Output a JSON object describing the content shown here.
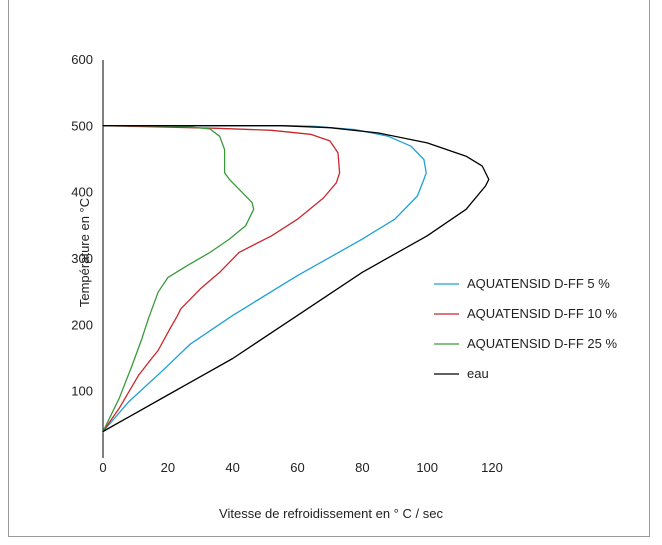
{
  "chart_data": {
    "type": "line",
    "title": "",
    "xlabel": "Vitesse de refroidissement en ° C / sec",
    "ylabel": "Température en  °C",
    "xlim": [
      0,
      120
    ],
    "ylim": [
      0,
      600
    ],
    "x_ticks": [
      0,
      20,
      40,
      60,
      80,
      100,
      120
    ],
    "y_ticks": [
      100,
      200,
      300,
      400,
      500,
      600
    ],
    "grid": false,
    "legend_position": "right",
    "series": [
      {
        "name": "AQUATENSID D-FF 5 %",
        "color": "#1ea1d6",
        "points": [
          [
            0,
            40
          ],
          [
            8,
            85
          ],
          [
            18,
            130
          ],
          [
            27,
            172
          ],
          [
            40,
            215
          ],
          [
            60,
            275
          ],
          [
            80,
            330
          ],
          [
            90,
            360
          ],
          [
            97,
            395
          ],
          [
            99,
            420
          ],
          [
            99.7,
            430
          ],
          [
            99,
            450
          ],
          [
            95,
            470
          ],
          [
            88,
            485
          ],
          [
            78,
            495
          ],
          [
            65,
            500
          ],
          [
            55,
            501
          ],
          [
            30,
            501
          ],
          [
            0,
            501
          ]
        ]
      },
      {
        "name": "AQUATENSID D-FF 10 %",
        "color": "#c8282d",
        "points": [
          [
            0,
            40
          ],
          [
            5,
            75
          ],
          [
            11,
            125
          ],
          [
            15,
            150
          ],
          [
            17,
            162
          ],
          [
            19,
            180
          ],
          [
            21,
            198
          ],
          [
            23,
            215
          ],
          [
            24,
            225
          ],
          [
            30,
            255
          ],
          [
            36,
            280
          ],
          [
            42,
            310
          ],
          [
            52,
            335
          ],
          [
            60,
            360
          ],
          [
            68,
            392
          ],
          [
            72,
            415
          ],
          [
            73,
            430
          ],
          [
            72.5,
            460
          ],
          [
            70,
            478
          ],
          [
            64,
            488
          ],
          [
            52,
            494
          ],
          [
            35,
            497
          ],
          [
            18,
            499
          ],
          [
            0,
            501
          ]
        ]
      },
      {
        "name": "AQUATENSID D-FF 25 %",
        "color": "#3a9a3a",
        "points": [
          [
            0,
            40
          ],
          [
            5,
            90
          ],
          [
            9,
            140
          ],
          [
            12,
            180
          ],
          [
            14,
            210
          ],
          [
            17,
            250
          ],
          [
            20,
            272
          ],
          [
            26,
            290
          ],
          [
            33,
            310
          ],
          [
            39,
            330
          ],
          [
            44,
            350
          ],
          [
            46.5,
            375
          ],
          [
            46,
            385
          ],
          [
            43,
            400
          ],
          [
            39,
            420
          ],
          [
            37.5,
            430
          ],
          [
            37.5,
            465
          ],
          [
            36,
            485
          ],
          [
            33,
            496
          ],
          [
            25,
            500
          ],
          [
            0,
            501
          ]
        ]
      },
      {
        "name": "eau",
        "color": "#000000",
        "points": [
          [
            0,
            40
          ],
          [
            20,
            95
          ],
          [
            40,
            150
          ],
          [
            60,
            215
          ],
          [
            80,
            280
          ],
          [
            100,
            335
          ],
          [
            112,
            375
          ],
          [
            118,
            410
          ],
          [
            119,
            420
          ],
          [
            117,
            440
          ],
          [
            112,
            455
          ],
          [
            100,
            475
          ],
          [
            85,
            490
          ],
          [
            70,
            498
          ],
          [
            55,
            501
          ],
          [
            0,
            501
          ]
        ]
      }
    ]
  }
}
